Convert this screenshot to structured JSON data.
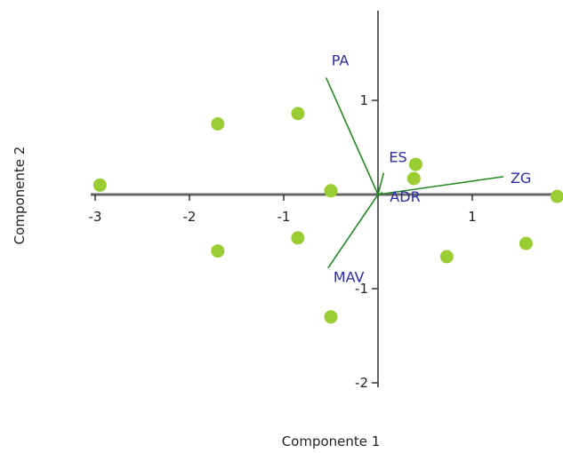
{
  "chart_data": {
    "type": "scatter",
    "title": "",
    "xlabel": "Componente 1",
    "ylabel": "Componente 2",
    "xlim": [
      -3.1,
      1.9
    ],
    "ylim": [
      -2.1,
      2.0
    ],
    "x_ticks": [
      -3,
      -2,
      -1,
      1
    ],
    "y_ticks": [
      -2,
      -1,
      1
    ],
    "grid": false,
    "points": [
      {
        "x": -2.95,
        "y": 0.1
      },
      {
        "x": -1.7,
        "y": 0.75
      },
      {
        "x": -1.7,
        "y": -0.6
      },
      {
        "x": -0.85,
        "y": 0.86
      },
      {
        "x": -0.85,
        "y": -0.46
      },
      {
        "x": -0.5,
        "y": 0.04
      },
      {
        "x": -0.5,
        "y": -1.3
      },
      {
        "x": 0.4,
        "y": 0.32
      },
      {
        "x": 0.38,
        "y": 0.17
      },
      {
        "x": 0.73,
        "y": -0.66
      },
      {
        "x": 1.57,
        "y": -0.52
      },
      {
        "x": 1.9,
        "y": -0.02
      }
    ],
    "vectors": [
      {
        "name": "PA",
        "x": -0.55,
        "y": 1.24
      },
      {
        "name": "ES",
        "x": 0.06,
        "y": 0.23
      },
      {
        "name": "ADR",
        "x": 0.05,
        "y": 0.02
      },
      {
        "name": "ZG",
        "x": 1.33,
        "y": 0.19
      },
      {
        "name": "MAV",
        "x": -0.53,
        "y": -0.78
      }
    ],
    "colors": {
      "points": "#9acd32",
      "vectors": "#228b22",
      "vector_labels": "#2a2aaa",
      "axes": "#666666"
    }
  }
}
